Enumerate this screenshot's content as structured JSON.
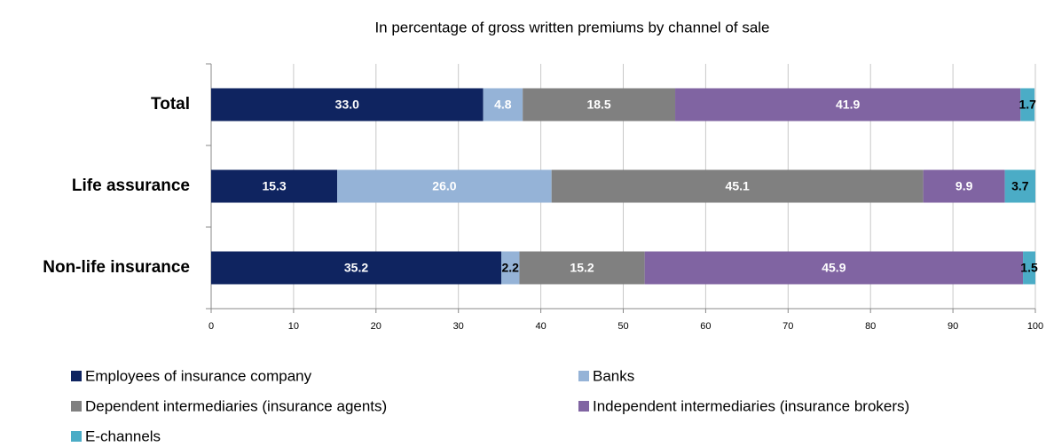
{
  "chart_data": {
    "type": "stacked_barh",
    "title": "In percentage of gross written premiums by channel of sale",
    "categories": [
      "Total",
      "Life assurance",
      "Non-life insurance"
    ],
    "series": [
      {
        "name": "Employees of insurance company",
        "color": "#0f2460",
        "values": [
          33.0,
          15.3,
          35.2
        ],
        "value_labels": [
          "33.0",
          "15.3",
          "35.2"
        ]
      },
      {
        "name": "Banks",
        "color": "#95b3d7",
        "values": [
          4.8,
          26.0,
          2.2
        ],
        "value_labels": [
          "4.8",
          "26.0",
          "2.2"
        ]
      },
      {
        "name": "Dependent intermediaries (insurance agents)",
        "color": "#808080",
        "values": [
          18.5,
          45.1,
          15.2
        ],
        "value_labels": [
          "18.5",
          "45.1",
          "15.2"
        ]
      },
      {
        "name": "Independent intermediaries (insurance brokers)",
        "color": "#8064a2",
        "values": [
          41.9,
          9.9,
          45.9
        ],
        "value_labels": [
          "41.9",
          "9.9",
          "45.9"
        ]
      },
      {
        "name": "E-channels",
        "color": "#4bacc6",
        "values": [
          1.7,
          3.7,
          1.5
        ],
        "value_labels": [
          "1.7",
          "3.7",
          "1.5"
        ]
      }
    ],
    "xlim": [
      0,
      100
    ],
    "xticks": [
      0,
      10,
      20,
      30,
      40,
      50,
      60,
      70,
      80,
      90,
      100
    ],
    "grid": true
  }
}
